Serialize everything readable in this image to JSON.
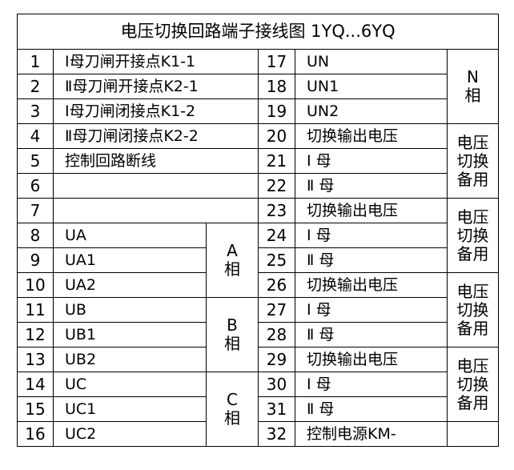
{
  "title": "电压切换回路端子接线图 1YQ...6YQ",
  "left_rows": [
    {
      "num": "1",
      "text": "Ⅰ母刀闸开接点K1-1"
    },
    {
      "num": "2",
      "text": "Ⅱ母刀闸开接点K2-1"
    },
    {
      "num": "3",
      "text": "Ⅰ母刀闸闭接点K1-2"
    },
    {
      "num": "4",
      "text": "Ⅱ母刀闸闭接点K2-2"
    },
    {
      "num": "5",
      "text": "控制回路断线"
    },
    {
      "num": "6",
      "text": ""
    },
    {
      "num": "7",
      "text": ""
    },
    {
      "num": "8",
      "text": "UA"
    },
    {
      "num": "9",
      "text": "UA1"
    },
    {
      "num": "10",
      "text": "UA2"
    },
    {
      "num": "11",
      "text": "UB"
    },
    {
      "num": "12",
      "text": "UB1"
    },
    {
      "num": "13",
      "text": "UB2"
    },
    {
      "num": "14",
      "text": "UC"
    },
    {
      "num": "15",
      "text": "UC1"
    },
    {
      "num": "16",
      "text": "UC2"
    }
  ],
  "phase_groups": [
    {
      "start": 8,
      "span": 3,
      "lines": [
        "A",
        "相"
      ]
    },
    {
      "start": 11,
      "span": 3,
      "lines": [
        "B",
        "相"
      ]
    },
    {
      "start": 14,
      "span": 3,
      "lines": [
        "C",
        "相"
      ]
    }
  ],
  "right_rows": [
    {
      "num": "17",
      "text": "UN"
    },
    {
      "num": "18",
      "text": "UN1"
    },
    {
      "num": "19",
      "text": "UN2"
    },
    {
      "num": "20",
      "text": "切换输出电压"
    },
    {
      "num": "21",
      "text": "Ⅰ   母"
    },
    {
      "num": "22",
      "text": "Ⅱ   母"
    },
    {
      "num": "23",
      "text": "切换输出电压"
    },
    {
      "num": "24",
      "text": "Ⅰ   母"
    },
    {
      "num": "25",
      "text": "Ⅱ   母"
    },
    {
      "num": "26",
      "text": "切换输出电压"
    },
    {
      "num": "27",
      "text": "Ⅰ   母"
    },
    {
      "num": "28",
      "text": "Ⅱ   母"
    },
    {
      "num": "29",
      "text": "切换输出电压"
    },
    {
      "num": "30",
      "text": "Ⅰ   母"
    },
    {
      "num": "31",
      "text": "Ⅱ   母"
    },
    {
      "num": "32",
      "text": "控制电源KM-"
    }
  ],
  "right_groups": [
    {
      "start": 1,
      "span": 3,
      "lines": [
        "N",
        "相"
      ]
    },
    {
      "start": 4,
      "span": 3,
      "lines": [
        "电压",
        "切换",
        "备用"
      ]
    },
    {
      "start": 7,
      "span": 3,
      "lines": [
        "电压",
        "切换",
        "备用"
      ]
    },
    {
      "start": 10,
      "span": 3,
      "lines": [
        "电压",
        "切换",
        "备用"
      ]
    },
    {
      "start": 13,
      "span": 3,
      "lines": [
        "电压",
        "切换",
        "备用"
      ]
    },
    {
      "start": 16,
      "span": 1,
      "lines": []
    }
  ]
}
